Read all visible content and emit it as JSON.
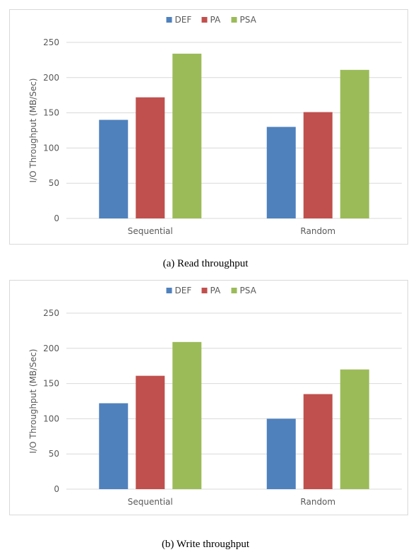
{
  "colors": {
    "DEF": "#4f81bd",
    "PA": "#c0504d",
    "PSA": "#9bbb59",
    "axis_text": "#595959",
    "grid": "#d9d9d9"
  },
  "panel_a": {
    "caption": "(a) Read throughput"
  },
  "panel_b": {
    "caption": "(b) Write throughput"
  },
  "chart_data": [
    {
      "type": "bar",
      "title": "",
      "xlabel": "",
      "ylabel": "I/O Throughput (MB/Sec)",
      "categories": [
        "Sequential",
        "Random"
      ],
      "series": [
        {
          "name": "DEF",
          "values": [
            140,
            130
          ]
        },
        {
          "name": "PA",
          "values": [
            172,
            151
          ]
        },
        {
          "name": "PSA",
          "values": [
            234,
            211
          ]
        }
      ],
      "ylim": [
        0,
        250
      ],
      "yticks": [
        0,
        50,
        100,
        150,
        200,
        250
      ],
      "grid": true,
      "legend": "top-center"
    },
    {
      "type": "bar",
      "title": "",
      "xlabel": "",
      "ylabel": "I/O Throughput (MB/Sec)",
      "categories": [
        "Sequential",
        "Random"
      ],
      "series": [
        {
          "name": "DEF",
          "values": [
            122,
            100
          ]
        },
        {
          "name": "PA",
          "values": [
            161,
            135
          ]
        },
        {
          "name": "PSA",
          "values": [
            209,
            170
          ]
        }
      ],
      "ylim": [
        0,
        250
      ],
      "yticks": [
        0,
        50,
        100,
        150,
        200,
        250
      ],
      "grid": true,
      "legend": "top-center"
    }
  ]
}
